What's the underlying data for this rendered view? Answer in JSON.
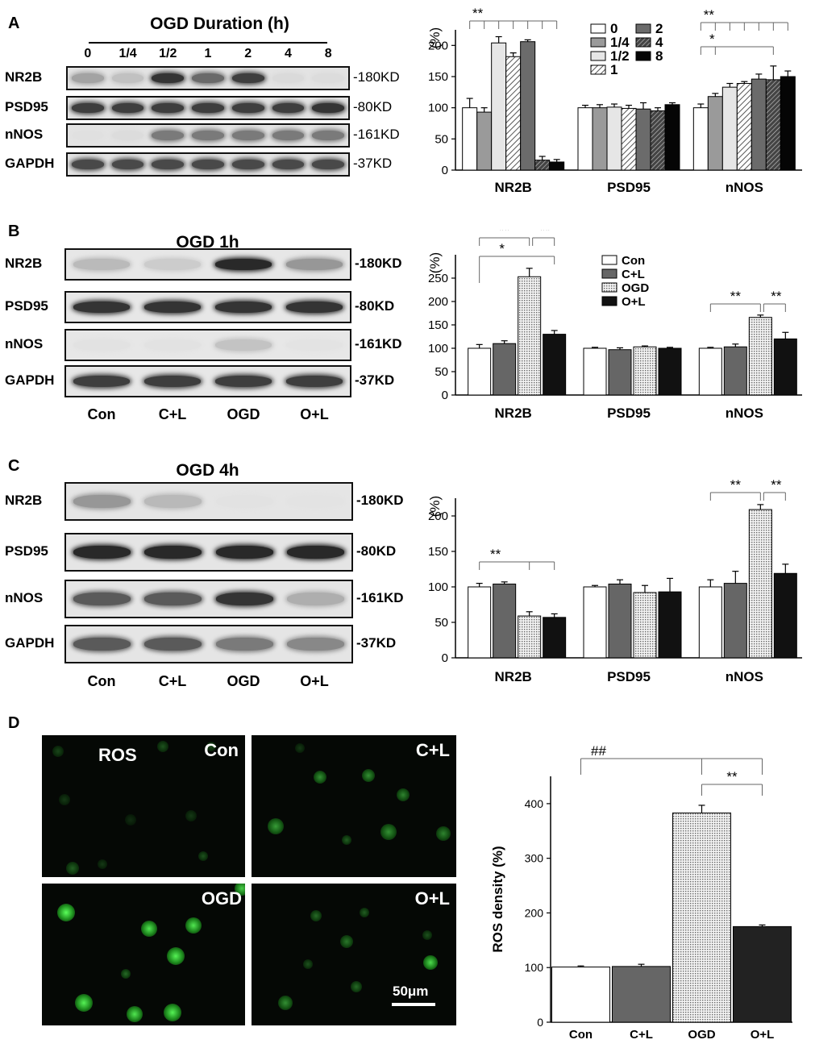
{
  "panel_a": {
    "letter": "A",
    "title": "OGD Duration (h)",
    "lanes": [
      "0",
      "1/4",
      "1/2",
      "1",
      "2",
      "4",
      "8"
    ],
    "rows": [
      {
        "label": "NR2B",
        "kd": "-180KD",
        "intensity": [
          0.45,
          0.3,
          0.85,
          0.65,
          0.8,
          0.12,
          0.1
        ]
      },
      {
        "label": "PSD95",
        "kd": "-80KD",
        "intensity": [
          0.8,
          0.8,
          0.8,
          0.8,
          0.8,
          0.8,
          0.85
        ]
      },
      {
        "label": "nNOS",
        "kd": "-161KD",
        "intensity": [
          0.05,
          0.1,
          0.6,
          0.6,
          0.6,
          0.6,
          0.6
        ]
      },
      {
        "label": "GAPDH",
        "kd": "-37KD",
        "intensity": [
          0.75,
          0.75,
          0.75,
          0.75,
          0.75,
          0.75,
          0.75
        ]
      }
    ]
  },
  "panel_b": {
    "letter": "B",
    "title": "OGD 1h",
    "groups": [
      "Con",
      "C+L",
      "OGD",
      "O+L"
    ],
    "rows": [
      {
        "label": "NR2B",
        "kd": "-180KD",
        "intensity": [
          0.35,
          0.25,
          0.9,
          0.5
        ]
      },
      {
        "label": "PSD95",
        "kd": "-80KD",
        "intensity": [
          0.85,
          0.85,
          0.85,
          0.85
        ]
      },
      {
        "label": "nNOS",
        "kd": "-161KD",
        "intensity": [
          0.06,
          0.06,
          0.3,
          0.05
        ]
      },
      {
        "label": "GAPDH",
        "kd": "-37KD",
        "intensity": [
          0.8,
          0.8,
          0.8,
          0.8
        ]
      }
    ]
  },
  "panel_c": {
    "letter": "C",
    "title": "OGD 4h",
    "groups": [
      "Con",
      "C+L",
      "OGD",
      "O+L"
    ],
    "rows": [
      {
        "label": "NR2B",
        "kd": "-180KD",
        "intensity": [
          0.5,
          0.35,
          0.04,
          0.03
        ]
      },
      {
        "label": "PSD95",
        "kd": "-80KD",
        "intensity": [
          0.9,
          0.9,
          0.9,
          0.9
        ]
      },
      {
        "label": "nNOS",
        "kd": "-161KD",
        "intensity": [
          0.7,
          0.7,
          0.85,
          0.4
        ]
      },
      {
        "label": "GAPDH",
        "kd": "-37KD",
        "intensity": [
          0.7,
          0.7,
          0.6,
          0.55
        ]
      }
    ]
  },
  "panel_d": {
    "letter": "D",
    "images": [
      {
        "label": "Con",
        "extra": "ROS"
      },
      {
        "label": "C+L",
        "extra": ""
      },
      {
        "label": "OGD",
        "extra": ""
      },
      {
        "label": "O+L",
        "extra": ""
      }
    ],
    "scale_bar": "50μm"
  },
  "chart_data": [
    {
      "id": "chartA",
      "type": "bar",
      "ylabel": "(%)",
      "ylim": [
        0,
        225
      ],
      "yticks": [
        0,
        50,
        100,
        150,
        200
      ],
      "categories": [
        "NR2B",
        "PSD95",
        "nNOS"
      ],
      "series": [
        {
          "name": "0",
          "values": [
            100,
            100,
            100
          ],
          "errors": [
            15,
            4,
            6
          ]
        },
        {
          "name": "1/4",
          "values": [
            93,
            100,
            118
          ],
          "errors": [
            7,
            5,
            5
          ]
        },
        {
          "name": "1/2",
          "values": [
            204,
            101,
            133
          ],
          "errors": [
            10,
            5,
            6
          ]
        },
        {
          "name": "1",
          "values": [
            182,
            99,
            139
          ],
          "errors": [
            6,
            5,
            3
          ]
        },
        {
          "name": "2",
          "values": [
            206,
            98,
            146
          ],
          "errors": [
            3,
            10,
            8
          ]
        },
        {
          "name": "4",
          "values": [
            16,
            95,
            145
          ],
          "errors": [
            6,
            5,
            22
          ]
        },
        {
          "name": "8",
          "values": [
            13,
            105,
            150
          ],
          "errors": [
            4,
            3,
            9
          ]
        }
      ],
      "annotations": [
        "**",
        "**",
        "*"
      ]
    },
    {
      "id": "chartB",
      "type": "bar",
      "ylabel": "(%)",
      "ylim": [
        0,
        300
      ],
      "yticks": [
        0,
        50,
        100,
        150,
        200,
        250
      ],
      "categories": [
        "NR2B",
        "PSD95",
        "nNOS"
      ],
      "series": [
        {
          "name": "Con",
          "values": [
            100,
            100,
            100
          ],
          "errors": [
            8,
            2,
            2
          ]
        },
        {
          "name": "C+L",
          "values": [
            110,
            97,
            103
          ],
          "errors": [
            6,
            4,
            6
          ]
        },
        {
          "name": "OGD",
          "values": [
            253,
            103,
            166
          ],
          "errors": [
            18,
            2,
            5
          ]
        },
        {
          "name": "O+L",
          "values": [
            130,
            100,
            120
          ],
          "errors": [
            8,
            2,
            14
          ]
        }
      ],
      "annotations": [
        "**",
        "**",
        "*",
        "**",
        "**"
      ]
    },
    {
      "id": "chartC",
      "type": "bar",
      "ylabel": "(%)",
      "ylim": [
        0,
        225
      ],
      "yticks": [
        0,
        50,
        100,
        150,
        200
      ],
      "categories": [
        "NR2B",
        "PSD95",
        "nNOS"
      ],
      "series": [
        {
          "name": "Con",
          "values": [
            100,
            100,
            100
          ],
          "errors": [
            5,
            2,
            10
          ]
        },
        {
          "name": "C+L",
          "values": [
            104,
            104,
            105
          ],
          "errors": [
            3,
            6,
            17
          ]
        },
        {
          "name": "OGD",
          "values": [
            59,
            92,
            209
          ],
          "errors": [
            6,
            10,
            7
          ]
        },
        {
          "name": "O+L",
          "values": [
            57,
            93,
            119
          ],
          "errors": [
            5,
            19,
            13
          ]
        }
      ],
      "annotations": [
        "**",
        "**",
        "**"
      ]
    },
    {
      "id": "chartD",
      "type": "bar",
      "ylabel": "ROS density (%)",
      "ylim": [
        0,
        450
      ],
      "yticks": [
        0,
        100,
        200,
        300,
        400
      ],
      "categories": [
        "Con",
        "C+L",
        "OGD",
        "O+L"
      ],
      "series": [
        {
          "name": "",
          "values": [
            101,
            102,
            383,
            175
          ],
          "errors": [
            2,
            4,
            14,
            3
          ]
        }
      ],
      "annotations": [
        "##",
        "**"
      ]
    }
  ]
}
